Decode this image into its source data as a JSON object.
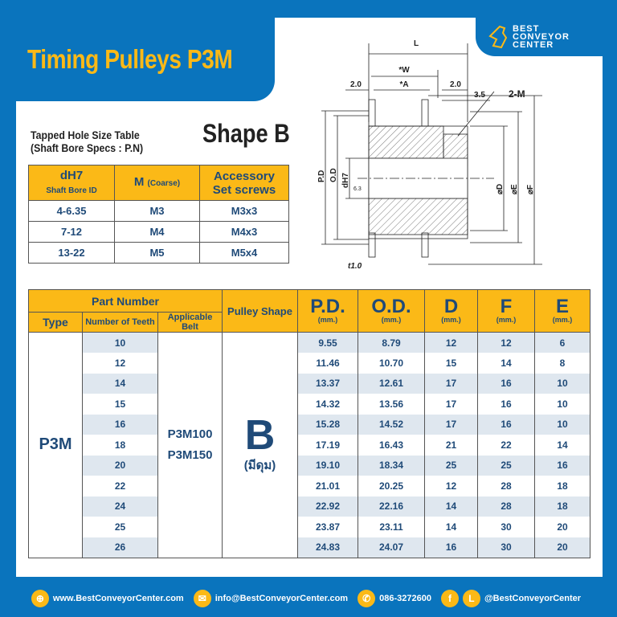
{
  "title": "Timing Pulleys P3M",
  "logo": {
    "line1": "BEST",
    "line2": "CONVEYOR",
    "line3": "CENTER"
  },
  "tapped_table": {
    "title1": "Tapped Hole Size Table",
    "title2": "(Shaft Bore Specs : P.N)",
    "shape_title": "Shape B",
    "headers": {
      "col1": "dH7",
      "col1_sub": "Shaft Bore ID",
      "col2": "M",
      "col2_sub": "(Coarse)",
      "col3a": "Accessory",
      "col3b": "Set screws"
    },
    "rows": [
      [
        "4-6.35",
        "M3",
        "M3x3"
      ],
      [
        "7-12",
        "M4",
        "M4x3"
      ],
      [
        "13-22",
        "M5",
        "M5x4"
      ]
    ]
  },
  "diagram": {
    "L": "L",
    "W": "*W",
    "A": "*A",
    "left_flange": "2.0",
    "right_flange": "2.0",
    "offset": "3.5",
    "tap": "2-M",
    "pd": "P.D",
    "od": "O.D",
    "bore": "dH7",
    "rough": "6.3",
    "d": "⌀D",
    "e": "⌀E",
    "f": "⌀F",
    "t": "t1.0"
  },
  "main_table": {
    "part_number": "Part Number",
    "type": "Type",
    "teeth": "Number of Teeth",
    "belt": "Applicable Belt",
    "shape": "Pulley Shape",
    "pd": "P.D.",
    "od": "O.D.",
    "d": "D",
    "f": "F",
    "e": "E",
    "unit": "(mm.)",
    "type_value": "P3M",
    "belt1": "P3M100",
    "belt2": "P3M150",
    "shape_value": "B",
    "shape_note": "(มีดุม)",
    "rows": [
      [
        "10",
        "9.55",
        "8.79",
        "12",
        "12",
        "6"
      ],
      [
        "12",
        "11.46",
        "10.70",
        "15",
        "14",
        "8"
      ],
      [
        "14",
        "13.37",
        "12.61",
        "17",
        "16",
        "10"
      ],
      [
        "15",
        "14.32",
        "13.56",
        "17",
        "16",
        "10"
      ],
      [
        "16",
        "15.28",
        "14.52",
        "17",
        "16",
        "10"
      ],
      [
        "18",
        "17.19",
        "16.43",
        "21",
        "22",
        "14"
      ],
      [
        "20",
        "19.10",
        "18.34",
        "25",
        "25",
        "16"
      ],
      [
        "22",
        "21.01",
        "20.25",
        "12",
        "28",
        "18"
      ],
      [
        "24",
        "22.92",
        "22.16",
        "14",
        "28",
        "18"
      ],
      [
        "25",
        "23.87",
        "23.11",
        "14",
        "30",
        "20"
      ],
      [
        "26",
        "24.83",
        "24.07",
        "16",
        "30",
        "20"
      ]
    ]
  },
  "footer": {
    "website": "www.BestConveyorCenter.com",
    "email": "info@BestConveyorCenter.com",
    "phone": "086-3272600",
    "social": "@BestConveyorCenter"
  },
  "colors": {
    "blue": "#0a74bd",
    "yellow": "#fbb917",
    "text": "#1f4a78",
    "stripe": "#dfe7ef"
  }
}
